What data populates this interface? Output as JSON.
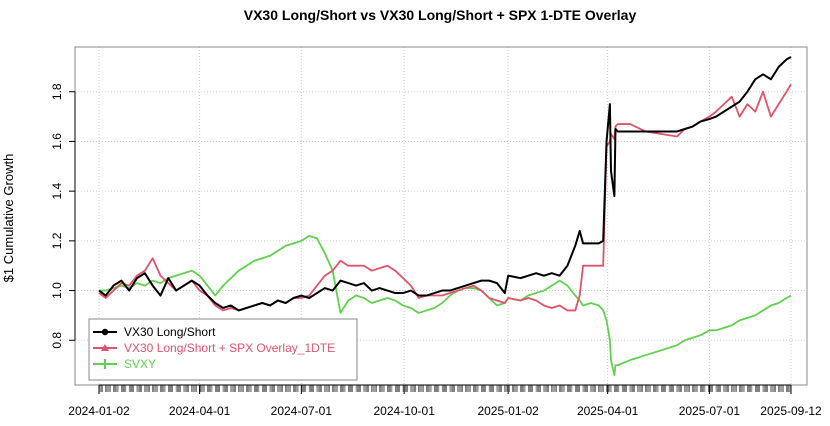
{
  "chart_data": {
    "type": "line",
    "title": "VX30 Long/Short vs VX30 Long/Short + SPX 1-DTE Overlay",
    "xlabel": "",
    "ylabel": "$1 Cumulative Growth",
    "xlim": [
      "2024-01-02",
      "2025-09-12"
    ],
    "ylim": [
      0.62,
      1.98
    ],
    "grid": true,
    "legend_position": "bottom-left",
    "x_ticks": [
      "2024-01-02",
      "2024-04-01",
      "2024-07-01",
      "2024-10-01",
      "2025-01-02",
      "2025-04-01",
      "2025-07-01",
      "2025-09-12"
    ],
    "y_ticks": [
      0.8,
      1.0,
      1.2,
      1.4,
      1.6,
      1.8
    ],
    "series": [
      {
        "name": "VX30 Long/Short",
        "color": "#000000",
        "points": [
          [
            "2024-01-02",
            1.0
          ],
          [
            "2024-01-08",
            0.98
          ],
          [
            "2024-01-15",
            1.02
          ],
          [
            "2024-01-22",
            1.04
          ],
          [
            "2024-01-29",
            1.0
          ],
          [
            "2024-02-05",
            1.05
          ],
          [
            "2024-02-12",
            1.07
          ],
          [
            "2024-02-19",
            1.02
          ],
          [
            "2024-02-26",
            0.98
          ],
          [
            "2024-03-04",
            1.05
          ],
          [
            "2024-03-11",
            1.0
          ],
          [
            "2024-03-18",
            1.02
          ],
          [
            "2024-03-25",
            1.04
          ],
          [
            "2024-04-01",
            1.02
          ],
          [
            "2024-04-08",
            0.98
          ],
          [
            "2024-04-15",
            0.95
          ],
          [
            "2024-04-22",
            0.93
          ],
          [
            "2024-04-29",
            0.94
          ],
          [
            "2024-05-06",
            0.92
          ],
          [
            "2024-05-13",
            0.93
          ],
          [
            "2024-05-20",
            0.94
          ],
          [
            "2024-05-27",
            0.95
          ],
          [
            "2024-06-03",
            0.94
          ],
          [
            "2024-06-10",
            0.96
          ],
          [
            "2024-06-17",
            0.95
          ],
          [
            "2024-06-24",
            0.97
          ],
          [
            "2024-07-01",
            0.98
          ],
          [
            "2024-07-08",
            0.97
          ],
          [
            "2024-07-15",
            0.99
          ],
          [
            "2024-07-22",
            1.01
          ],
          [
            "2024-07-29",
            1.0
          ],
          [
            "2024-08-05",
            1.04
          ],
          [
            "2024-08-12",
            1.03
          ],
          [
            "2024-08-19",
            1.02
          ],
          [
            "2024-08-26",
            1.03
          ],
          [
            "2024-09-02",
            1.0
          ],
          [
            "2024-09-09",
            1.01
          ],
          [
            "2024-09-16",
            1.0
          ],
          [
            "2024-09-23",
            0.99
          ],
          [
            "2024-09-30",
            0.99
          ],
          [
            "2024-10-07",
            1.0
          ],
          [
            "2024-10-14",
            0.98
          ],
          [
            "2024-10-21",
            0.98
          ],
          [
            "2024-10-28",
            0.99
          ],
          [
            "2024-11-04",
            1.0
          ],
          [
            "2024-11-11",
            1.0
          ],
          [
            "2024-11-18",
            1.01
          ],
          [
            "2024-11-25",
            1.02
          ],
          [
            "2024-12-02",
            1.03
          ],
          [
            "2024-12-09",
            1.04
          ],
          [
            "2024-12-16",
            1.04
          ],
          [
            "2024-12-23",
            1.03
          ],
          [
            "2024-12-30",
            0.99
          ],
          [
            "2025-01-02",
            1.06
          ],
          [
            "2025-01-13",
            1.05
          ],
          [
            "2025-01-20",
            1.06
          ],
          [
            "2025-01-27",
            1.07
          ],
          [
            "2025-02-03",
            1.06
          ],
          [
            "2025-02-10",
            1.07
          ],
          [
            "2025-02-17",
            1.06
          ],
          [
            "2025-02-24",
            1.1
          ],
          [
            "2025-03-03",
            1.18
          ],
          [
            "2025-03-07",
            1.24
          ],
          [
            "2025-03-10",
            1.19
          ],
          [
            "2025-03-17",
            1.19
          ],
          [
            "2025-03-24",
            1.19
          ],
          [
            "2025-03-28",
            1.2
          ],
          [
            "2025-03-31",
            1.6
          ],
          [
            "2025-04-03",
            1.75
          ],
          [
            "2025-04-04",
            1.48
          ],
          [
            "2025-04-07",
            1.38
          ],
          [
            "2025-04-08",
            1.65
          ],
          [
            "2025-04-10",
            1.64
          ],
          [
            "2025-04-21",
            1.64
          ],
          [
            "2025-05-05",
            1.64
          ],
          [
            "2025-05-19",
            1.64
          ],
          [
            "2025-06-02",
            1.64
          ],
          [
            "2025-06-09",
            1.65
          ],
          [
            "2025-06-16",
            1.66
          ],
          [
            "2025-06-23",
            1.68
          ],
          [
            "2025-07-01",
            1.69
          ],
          [
            "2025-07-07",
            1.7
          ],
          [
            "2025-07-14",
            1.72
          ],
          [
            "2025-07-21",
            1.74
          ],
          [
            "2025-07-28",
            1.76
          ],
          [
            "2025-08-04",
            1.8
          ],
          [
            "2025-08-11",
            1.85
          ],
          [
            "2025-08-18",
            1.87
          ],
          [
            "2025-08-25",
            1.85
          ],
          [
            "2025-09-01",
            1.9
          ],
          [
            "2025-09-08",
            1.93
          ],
          [
            "2025-09-12",
            1.94
          ]
        ]
      },
      {
        "name": "VX30 Long/Short + SPX Overlay_1DTE",
        "color": "#DF536B",
        "points": [
          [
            "2024-01-02",
            0.99
          ],
          [
            "2024-01-08",
            0.97
          ],
          [
            "2024-01-15",
            1.0
          ],
          [
            "2024-01-22",
            1.03
          ],
          [
            "2024-01-29",
            1.02
          ],
          [
            "2024-02-05",
            1.06
          ],
          [
            "2024-02-12",
            1.08
          ],
          [
            "2024-02-19",
            1.13
          ],
          [
            "2024-02-26",
            1.06
          ],
          [
            "2024-03-04",
            1.03
          ],
          [
            "2024-03-11",
            1.0
          ],
          [
            "2024-03-18",
            1.02
          ],
          [
            "2024-03-25",
            1.04
          ],
          [
            "2024-04-01",
            1.0
          ],
          [
            "2024-04-08",
            0.98
          ],
          [
            "2024-04-15",
            0.94
          ],
          [
            "2024-04-22",
            0.92
          ],
          [
            "2024-04-29",
            0.93
          ],
          [
            "2024-05-06",
            0.92
          ],
          [
            "2024-05-13",
            0.93
          ],
          [
            "2024-05-20",
            0.94
          ],
          [
            "2024-05-27",
            0.95
          ],
          [
            "2024-06-03",
            0.94
          ],
          [
            "2024-06-10",
            0.96
          ],
          [
            "2024-06-17",
            0.95
          ],
          [
            "2024-06-24",
            0.97
          ],
          [
            "2024-07-01",
            0.97
          ],
          [
            "2024-07-08",
            0.98
          ],
          [
            "2024-07-15",
            1.02
          ],
          [
            "2024-07-22",
            1.06
          ],
          [
            "2024-07-29",
            1.08
          ],
          [
            "2024-08-05",
            1.12
          ],
          [
            "2024-08-12",
            1.1
          ],
          [
            "2024-08-19",
            1.1
          ],
          [
            "2024-08-26",
            1.1
          ],
          [
            "2024-09-02",
            1.08
          ],
          [
            "2024-09-09",
            1.09
          ],
          [
            "2024-09-16",
            1.1
          ],
          [
            "2024-09-23",
            1.08
          ],
          [
            "2024-09-30",
            1.05
          ],
          [
            "2024-10-07",
            1.02
          ],
          [
            "2024-10-14",
            0.97
          ],
          [
            "2024-10-21",
            0.98
          ],
          [
            "2024-10-28",
            0.98
          ],
          [
            "2024-11-04",
            0.98
          ],
          [
            "2024-11-11",
            0.99
          ],
          [
            "2024-11-18",
            1.0
          ],
          [
            "2024-11-25",
            1.01
          ],
          [
            "2024-12-02",
            1.02
          ],
          [
            "2024-12-09",
            1.0
          ],
          [
            "2024-12-16",
            0.97
          ],
          [
            "2024-12-23",
            0.96
          ],
          [
            "2024-12-30",
            0.95
          ],
          [
            "2025-01-02",
            0.97
          ],
          [
            "2025-01-13",
            0.96
          ],
          [
            "2025-01-20",
            0.97
          ],
          [
            "2025-01-27",
            0.96
          ],
          [
            "2025-02-03",
            0.94
          ],
          [
            "2025-02-10",
            0.93
          ],
          [
            "2025-02-17",
            0.94
          ],
          [
            "2025-02-24",
            0.92
          ],
          [
            "2025-03-03",
            0.92
          ],
          [
            "2025-03-07",
            0.98
          ],
          [
            "2025-03-10",
            1.1
          ],
          [
            "2025-03-17",
            1.1
          ],
          [
            "2025-03-24",
            1.1
          ],
          [
            "2025-03-28",
            1.1
          ],
          [
            "2025-03-31",
            1.58
          ],
          [
            "2025-04-03",
            1.6
          ],
          [
            "2025-04-04",
            1.63
          ],
          [
            "2025-04-07",
            1.61
          ],
          [
            "2025-04-08",
            1.66
          ],
          [
            "2025-04-10",
            1.67
          ],
          [
            "2025-04-21",
            1.67
          ],
          [
            "2025-05-05",
            1.64
          ],
          [
            "2025-05-19",
            1.63
          ],
          [
            "2025-06-02",
            1.62
          ],
          [
            "2025-06-09",
            1.65
          ],
          [
            "2025-06-16",
            1.66
          ],
          [
            "2025-06-23",
            1.68
          ],
          [
            "2025-07-01",
            1.7
          ],
          [
            "2025-07-07",
            1.72
          ],
          [
            "2025-07-14",
            1.75
          ],
          [
            "2025-07-21",
            1.78
          ],
          [
            "2025-07-28",
            1.7
          ],
          [
            "2025-08-04",
            1.75
          ],
          [
            "2025-08-11",
            1.72
          ],
          [
            "2025-08-18",
            1.8
          ],
          [
            "2025-08-25",
            1.7
          ],
          [
            "2025-09-01",
            1.75
          ],
          [
            "2025-09-08",
            1.8
          ],
          [
            "2025-09-12",
            1.83
          ]
        ]
      },
      {
        "name": "SVXY",
        "color": "#61D04F",
        "points": [
          [
            "2024-01-02",
            1.0
          ],
          [
            "2024-01-08",
            1.0
          ],
          [
            "2024-01-15",
            1.01
          ],
          [
            "2024-01-22",
            1.02
          ],
          [
            "2024-01-29",
            1.01
          ],
          [
            "2024-02-05",
            1.03
          ],
          [
            "2024-02-12",
            1.02
          ],
          [
            "2024-02-19",
            1.04
          ],
          [
            "2024-02-26",
            1.03
          ],
          [
            "2024-03-04",
            1.05
          ],
          [
            "2024-03-11",
            1.06
          ],
          [
            "2024-03-18",
            1.07
          ],
          [
            "2024-03-25",
            1.08
          ],
          [
            "2024-04-01",
            1.06
          ],
          [
            "2024-04-08",
            1.02
          ],
          [
            "2024-04-15",
            0.98
          ],
          [
            "2024-04-22",
            1.02
          ],
          [
            "2024-04-29",
            1.05
          ],
          [
            "2024-05-06",
            1.08
          ],
          [
            "2024-05-13",
            1.1
          ],
          [
            "2024-05-20",
            1.12
          ],
          [
            "2024-05-27",
            1.13
          ],
          [
            "2024-06-03",
            1.14
          ],
          [
            "2024-06-10",
            1.16
          ],
          [
            "2024-06-17",
            1.18
          ],
          [
            "2024-06-24",
            1.19
          ],
          [
            "2024-07-01",
            1.2
          ],
          [
            "2024-07-08",
            1.22
          ],
          [
            "2024-07-15",
            1.21
          ],
          [
            "2024-07-22",
            1.15
          ],
          [
            "2024-07-29",
            1.08
          ],
          [
            "2024-08-05",
            0.91
          ],
          [
            "2024-08-12",
            0.96
          ],
          [
            "2024-08-19",
            0.98
          ],
          [
            "2024-08-26",
            0.97
          ],
          [
            "2024-09-02",
            0.95
          ],
          [
            "2024-09-09",
            0.96
          ],
          [
            "2024-09-16",
            0.97
          ],
          [
            "2024-09-23",
            0.96
          ],
          [
            "2024-09-30",
            0.94
          ],
          [
            "2024-10-07",
            0.93
          ],
          [
            "2024-10-14",
            0.91
          ],
          [
            "2024-10-21",
            0.92
          ],
          [
            "2024-10-28",
            0.93
          ],
          [
            "2024-11-04",
            0.95
          ],
          [
            "2024-11-11",
            0.98
          ],
          [
            "2024-11-18",
            1.0
          ],
          [
            "2024-11-25",
            1.01
          ],
          [
            "2024-12-02",
            1.01
          ],
          [
            "2024-12-09",
            1.0
          ],
          [
            "2024-12-16",
            0.97
          ],
          [
            "2024-12-23",
            0.94
          ],
          [
            "2024-12-30",
            0.95
          ],
          [
            "2025-01-02",
            0.97
          ],
          [
            "2025-01-13",
            0.96
          ],
          [
            "2025-01-20",
            0.98
          ],
          [
            "2025-01-27",
            0.99
          ],
          [
            "2025-02-03",
            1.0
          ],
          [
            "2025-02-10",
            1.02
          ],
          [
            "2025-02-17",
            1.04
          ],
          [
            "2025-02-24",
            1.02
          ],
          [
            "2025-03-03",
            0.98
          ],
          [
            "2025-03-07",
            0.96
          ],
          [
            "2025-03-10",
            0.94
          ],
          [
            "2025-03-17",
            0.95
          ],
          [
            "2025-03-24",
            0.94
          ],
          [
            "2025-03-28",
            0.92
          ],
          [
            "2025-03-31",
            0.88
          ],
          [
            "2025-04-03",
            0.8
          ],
          [
            "2025-04-04",
            0.72
          ],
          [
            "2025-04-07",
            0.66
          ],
          [
            "2025-04-08",
            0.7
          ],
          [
            "2025-04-10",
            0.7
          ],
          [
            "2025-04-21",
            0.72
          ],
          [
            "2025-05-05",
            0.74
          ],
          [
            "2025-05-19",
            0.76
          ],
          [
            "2025-06-02",
            0.78
          ],
          [
            "2025-06-09",
            0.8
          ],
          [
            "2025-06-16",
            0.81
          ],
          [
            "2025-06-23",
            0.82
          ],
          [
            "2025-07-01",
            0.84
          ],
          [
            "2025-07-07",
            0.84
          ],
          [
            "2025-07-14",
            0.85
          ],
          [
            "2025-07-21",
            0.86
          ],
          [
            "2025-07-28",
            0.88
          ],
          [
            "2025-08-04",
            0.89
          ],
          [
            "2025-08-11",
            0.9
          ],
          [
            "2025-08-18",
            0.92
          ],
          [
            "2025-08-25",
            0.94
          ],
          [
            "2025-09-01",
            0.95
          ],
          [
            "2025-09-08",
            0.97
          ],
          [
            "2025-09-12",
            0.98
          ]
        ]
      }
    ]
  }
}
